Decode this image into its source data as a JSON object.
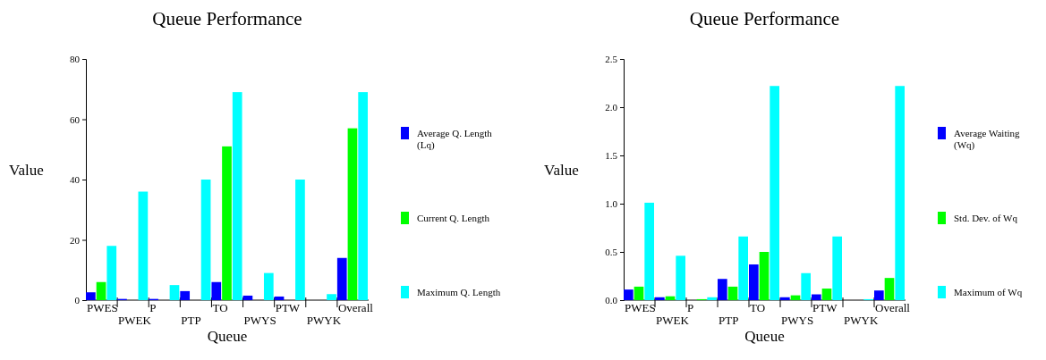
{
  "chart_data": [
    {
      "type": "bar",
      "title": "Queue Performance",
      "xlabel": "Queue",
      "ylabel": "Value",
      "categories": [
        "PWES",
        "PWEK",
        "P",
        "PTP",
        "TO",
        "PWYS",
        "PTW",
        "PWYK",
        "Overall"
      ],
      "series": [
        {
          "name": "Average Q. Length (Lq)",
          "color": "#0000ff",
          "values": [
            2.6,
            0.4,
            0.4,
            3,
            6,
            1.5,
            1.2,
            0,
            14
          ]
        },
        {
          "name": "Current Q. Length",
          "color": "#00ff00",
          "values": [
            6,
            0,
            0,
            0,
            51,
            0,
            0,
            0,
            57
          ]
        },
        {
          "name": "Maximum Q. Length",
          "color": "#00ffff",
          "values": [
            18,
            36,
            5,
            40,
            69,
            9,
            40,
            2,
            69
          ]
        }
      ],
      "ylim": [
        0,
        80
      ],
      "yticks": [
        0,
        20,
        40,
        60,
        80
      ],
      "grid": false,
      "legend": "right"
    },
    {
      "type": "bar",
      "title": "Queue Performance",
      "xlabel": "Queue",
      "ylabel": "Value",
      "categories": [
        "PWES",
        "PWEK",
        "P",
        "PTP",
        "TO",
        "PWYS",
        "PTW",
        "PWYK",
        "Overall"
      ],
      "series": [
        {
          "name": "Average Waiting (Wq)",
          "color": "#0000ff",
          "values": [
            0.11,
            0.03,
            0,
            0.22,
            0.37,
            0.03,
            0.06,
            0,
            0.1
          ]
        },
        {
          "name": "Std. Dev. of Wq",
          "color": "#00ff00",
          "values": [
            0.14,
            0.04,
            0.01,
            0.14,
            0.5,
            0.05,
            0.12,
            0,
            0.23
          ]
        },
        {
          "name": "Maximum of Wq",
          "color": "#00ffff",
          "values": [
            1.01,
            0.46,
            0.03,
            0.66,
            2.22,
            0.28,
            0.66,
            0.01,
            2.22
          ]
        }
      ],
      "ylim": [
        0,
        2.5
      ],
      "yticks": [
        {
          "value": 0,
          "label": "0.0"
        },
        {
          "value": 0.5,
          "label": "0.5"
        },
        {
          "value": 1,
          "label": "1.0"
        },
        {
          "value": 1.5,
          "label": "1.5"
        },
        {
          "value": 2,
          "label": "2.0"
        },
        {
          "value": 2.5,
          "label": "2.5"
        }
      ],
      "grid": false,
      "legend": "right"
    }
  ]
}
